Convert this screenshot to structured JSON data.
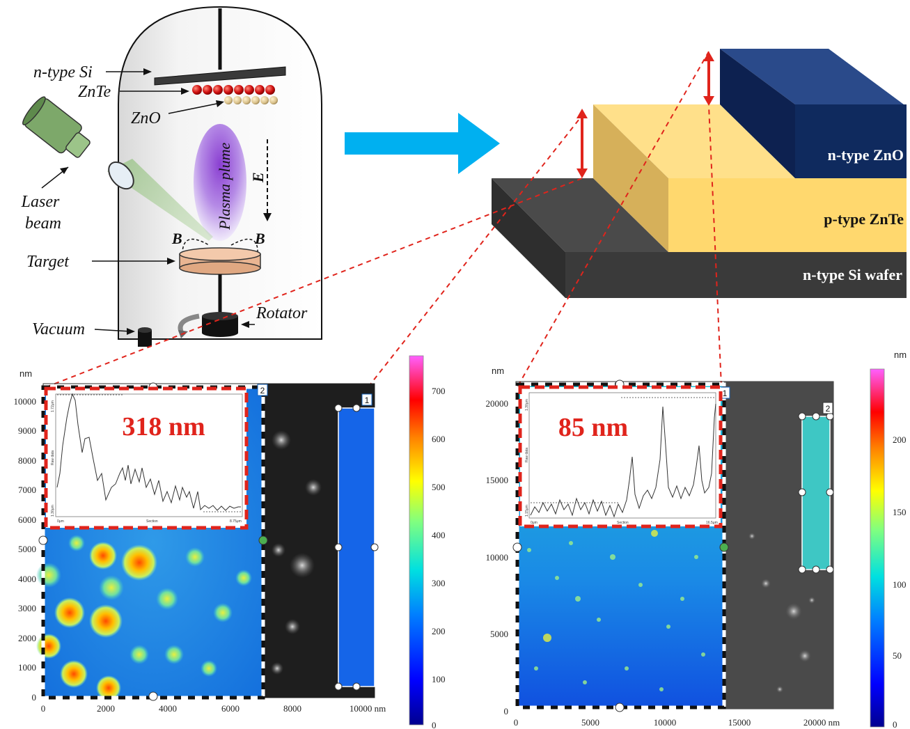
{
  "chamber": {
    "labels": {
      "ntype_si": "n-type Si",
      "znte": "ZnTe",
      "zno": "ZnO",
      "laser_beam_line1": "Laser",
      "laser_beam_line2": "beam",
      "plasma_plume": "Plasma plume",
      "e_field": "E",
      "b_left": "B",
      "b_right": "B",
      "target": "Target",
      "rotator": "Rotator",
      "vacuum": "Vacuum"
    }
  },
  "stack": {
    "layers": {
      "zno": "n-type ZnO",
      "znte": "p-type ZnTe",
      "si": "n-type Si wafer"
    },
    "colors": {
      "zno": "#0f2a5e",
      "znte": "#ffd875",
      "si": "#3a3a3a",
      "arrow": "#00b0f0",
      "dash": "#e0241c"
    }
  },
  "afm_left": {
    "unit_label": "nm",
    "y_ticks": [
      "10000",
      "9000",
      "8000",
      "7000",
      "6000",
      "5000",
      "4000",
      "3000",
      "2000",
      "1000",
      "0"
    ],
    "x_ticks": [
      "0",
      "2000",
      "4000",
      "6000",
      "8000",
      "10000 nm"
    ],
    "colorbar_ticks": [
      "700",
      "600",
      "500",
      "400",
      "300",
      "200",
      "100",
      "0"
    ],
    "inset_value": "318 nm",
    "inset_axis": {
      "y_top": "1.72μm",
      "y_bottom": "1.30μm",
      "y_label": "Raw data",
      "x_left": "0μm",
      "x_mid": "Section",
      "x_right": "8.75μm"
    },
    "region_labels": [
      "2",
      "1"
    ]
  },
  "afm_right": {
    "unit_label": "nm",
    "y_ticks": [
      "20000",
      "15000",
      "10000",
      "5000",
      "0"
    ],
    "x_ticks": [
      "0",
      "5000",
      "10000",
      "15000",
      "20000 nm"
    ],
    "colorbar_unit": "nm",
    "colorbar_ticks": [
      "200",
      "150",
      "100",
      "50",
      "0"
    ],
    "inset_value": "85 nm",
    "inset_axis": {
      "y_top": "1.30μm",
      "y_bottom": "1.15μm",
      "y_label": "Raw data",
      "x_left": "0μm",
      "x_mid": "Section",
      "x_right": "16.5μm"
    },
    "region_labels": [
      "1",
      "2"
    ]
  }
}
